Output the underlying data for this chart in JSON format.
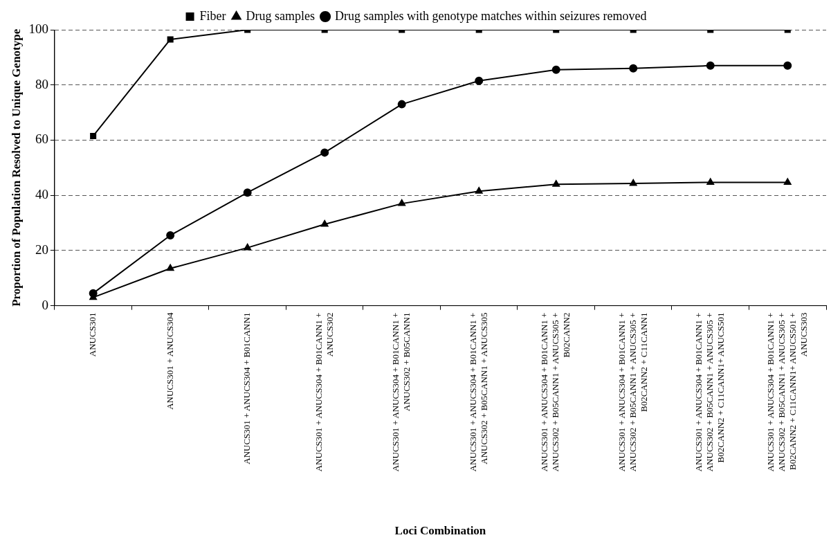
{
  "chart_data": {
    "type": "line",
    "xlabel": "Loci Combination",
    "ylabel": "Proportion of Population Resolved to Unique Genotype",
    "categories": [
      "ANUCS301",
      "ANUCS301 + ANUCS304",
      "ANUCS301 + ANUCS304 + B01CANN1",
      "ANUCS301 + ANUCS304 + B01CANN1 + ANUCS302",
      "ANUCS301 + ANUCS304 + B01CANN1 + ANUCS302 + B05CANN1",
      "ANUCS301 + ANUCS304 + B01CANN1 + ANUCS302 + B05CANN1 + ANUCS305",
      "ANUCS301 + ANUCS304 + B01CANN1 + ANUCS302 + B05CANN1 + ANUCS305 + B02CANN2",
      "ANUCS301 + ANUCS304 + B01CANN1 + ANUCS302 + B05CANN1 + ANUCS305 + B02CANN2 + C11CANN1",
      "ANUCS301 + ANUCS304 + B01CANN1 + ANUCS302 + B05CANN1 + ANUCS305 + B02CANN2 + C11CANN1+ ANUCS501",
      "ANUCS301 + ANUCS304 + B01CANN1 + ANUCS302 + B05CANN1 + ANUCS305 + B02CANN2 + C11CANN1+ ANUCS501 + ANUCS303"
    ],
    "series": [
      {
        "name": "Fiber",
        "color": "#000000",
        "marker": "square",
        "values": [
          61.5,
          96.5,
          100,
          100,
          100,
          100,
          100,
          100,
          100,
          100
        ]
      },
      {
        "name": "Drug samples",
        "color": "#000000",
        "marker": "triangle",
        "values": [
          3,
          13.5,
          21,
          29.5,
          37,
          41.5,
          44,
          44.3,
          44.7,
          44.7
        ]
      },
      {
        "name": "Drug samples with genotype matches within seizures removed",
        "color": "#000000",
        "marker": "circle",
        "values": [
          4.5,
          25.5,
          41,
          55.5,
          73,
          81.5,
          85.5,
          86,
          87,
          87
        ]
      }
    ],
    "ylim": [
      0,
      100
    ],
    "yticks": [
      0,
      20,
      40,
      60,
      80,
      100
    ],
    "grid": "y",
    "legend": "top",
    "line_style": "solid"
  }
}
